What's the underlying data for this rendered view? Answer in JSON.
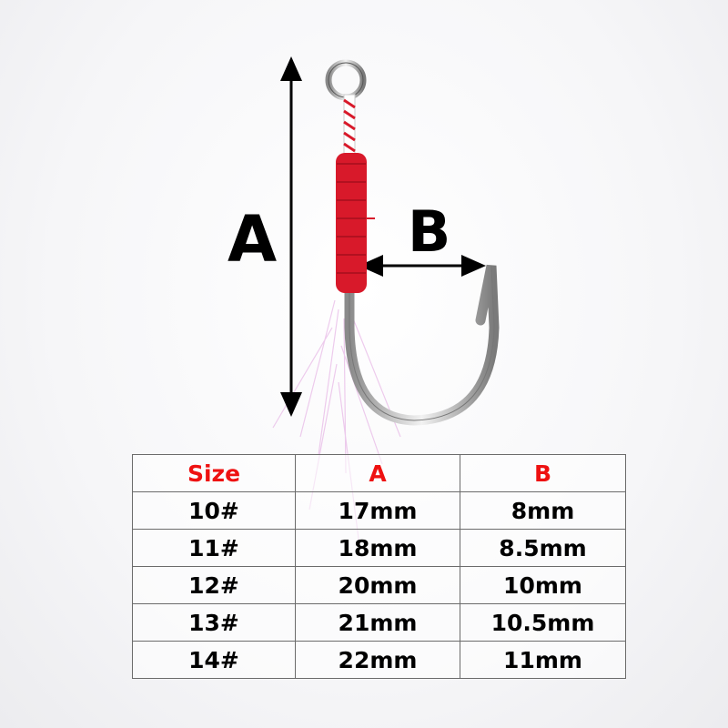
{
  "dimensions": {
    "a_label": "A",
    "b_label": "B"
  },
  "colors": {
    "header_text": "#ee1111",
    "wrap": "#d8192a",
    "body_text": "#000000"
  },
  "size_table": {
    "headers": [
      "Size",
      "A",
      "B"
    ],
    "rows": [
      [
        "10#",
        "17mm",
        "8mm"
      ],
      [
        "11#",
        "18mm",
        "8.5mm"
      ],
      [
        "12#",
        "20mm",
        "10mm"
      ],
      [
        "13#",
        "21mm",
        "10.5mm"
      ],
      [
        "14#",
        "22mm",
        "11mm"
      ]
    ]
  }
}
